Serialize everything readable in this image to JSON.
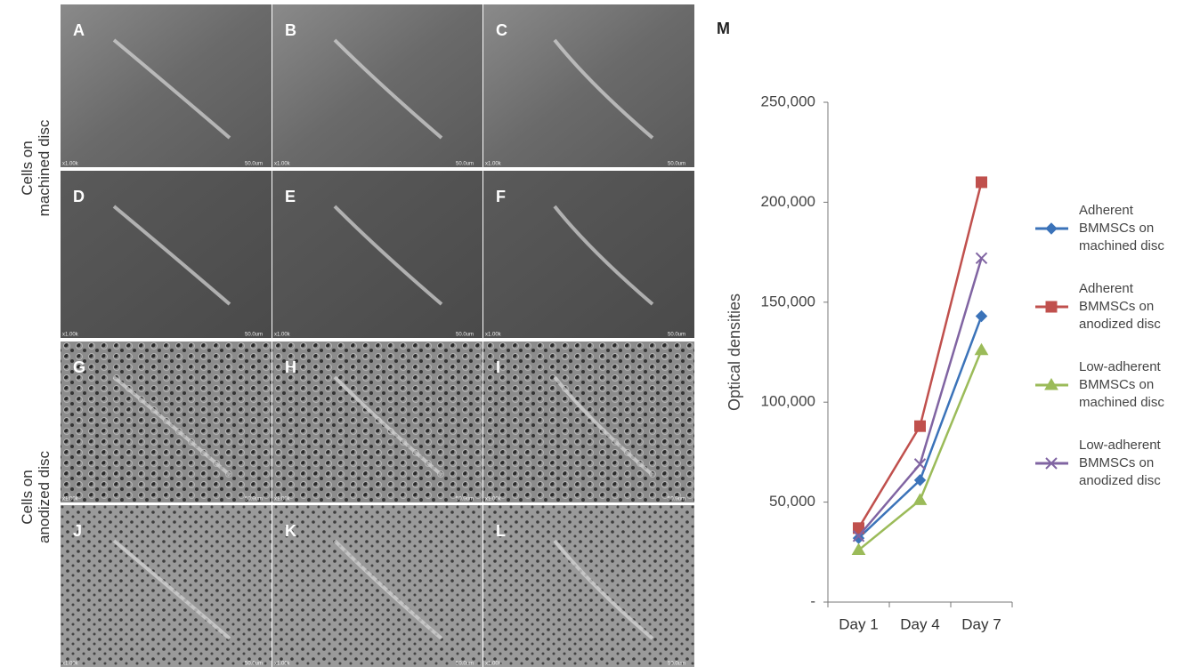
{
  "panels": {
    "letters": [
      "A",
      "B",
      "C",
      "D",
      "E",
      "F",
      "G",
      "H",
      "I",
      "J",
      "K",
      "L"
    ],
    "scale_labels": [
      "x1.00k",
      "50.0um"
    ]
  },
  "row_labels": [
    "Cells on machined disc",
    "Cells on anodized disc"
  ],
  "chart_data": {
    "type": "line",
    "panel_label": "M",
    "y_label": "Optical densities",
    "categories": [
      "Day 1",
      "Day 4",
      "Day 7"
    ],
    "series": [
      {
        "name": "Adherent BMMSCs on machined disc",
        "color": "#3b73b9",
        "marker": "diamond",
        "values": [
          32000,
          61000,
          143000
        ]
      },
      {
        "name": "Adherent BMMSCs on anodized disc",
        "color": "#c0504d",
        "marker": "square",
        "values": [
          37000,
          88000,
          210000
        ]
      },
      {
        "name": "Low-adherent BMMSCs on machined disc",
        "color": "#9bbb59",
        "marker": "triangle",
        "values": [
          26000,
          51000,
          126000
        ]
      },
      {
        "name": "Low-adherent BMMSCs on anodized disc",
        "color": "#8064a2",
        "marker": "x",
        "values": [
          33000,
          69000,
          172000
        ]
      }
    ],
    "ylim": [
      0,
      250000
    ],
    "yticks": [
      {
        "value": 0,
        "label": "-"
      },
      {
        "value": 50000,
        "label": "50,000"
      },
      {
        "value": 100000,
        "label": "100,000"
      },
      {
        "value": 150000,
        "label": "150,000"
      },
      {
        "value": 200000,
        "label": "200,000"
      },
      {
        "value": 250000,
        "label": "250,000"
      }
    ],
    "legend": "right"
  }
}
